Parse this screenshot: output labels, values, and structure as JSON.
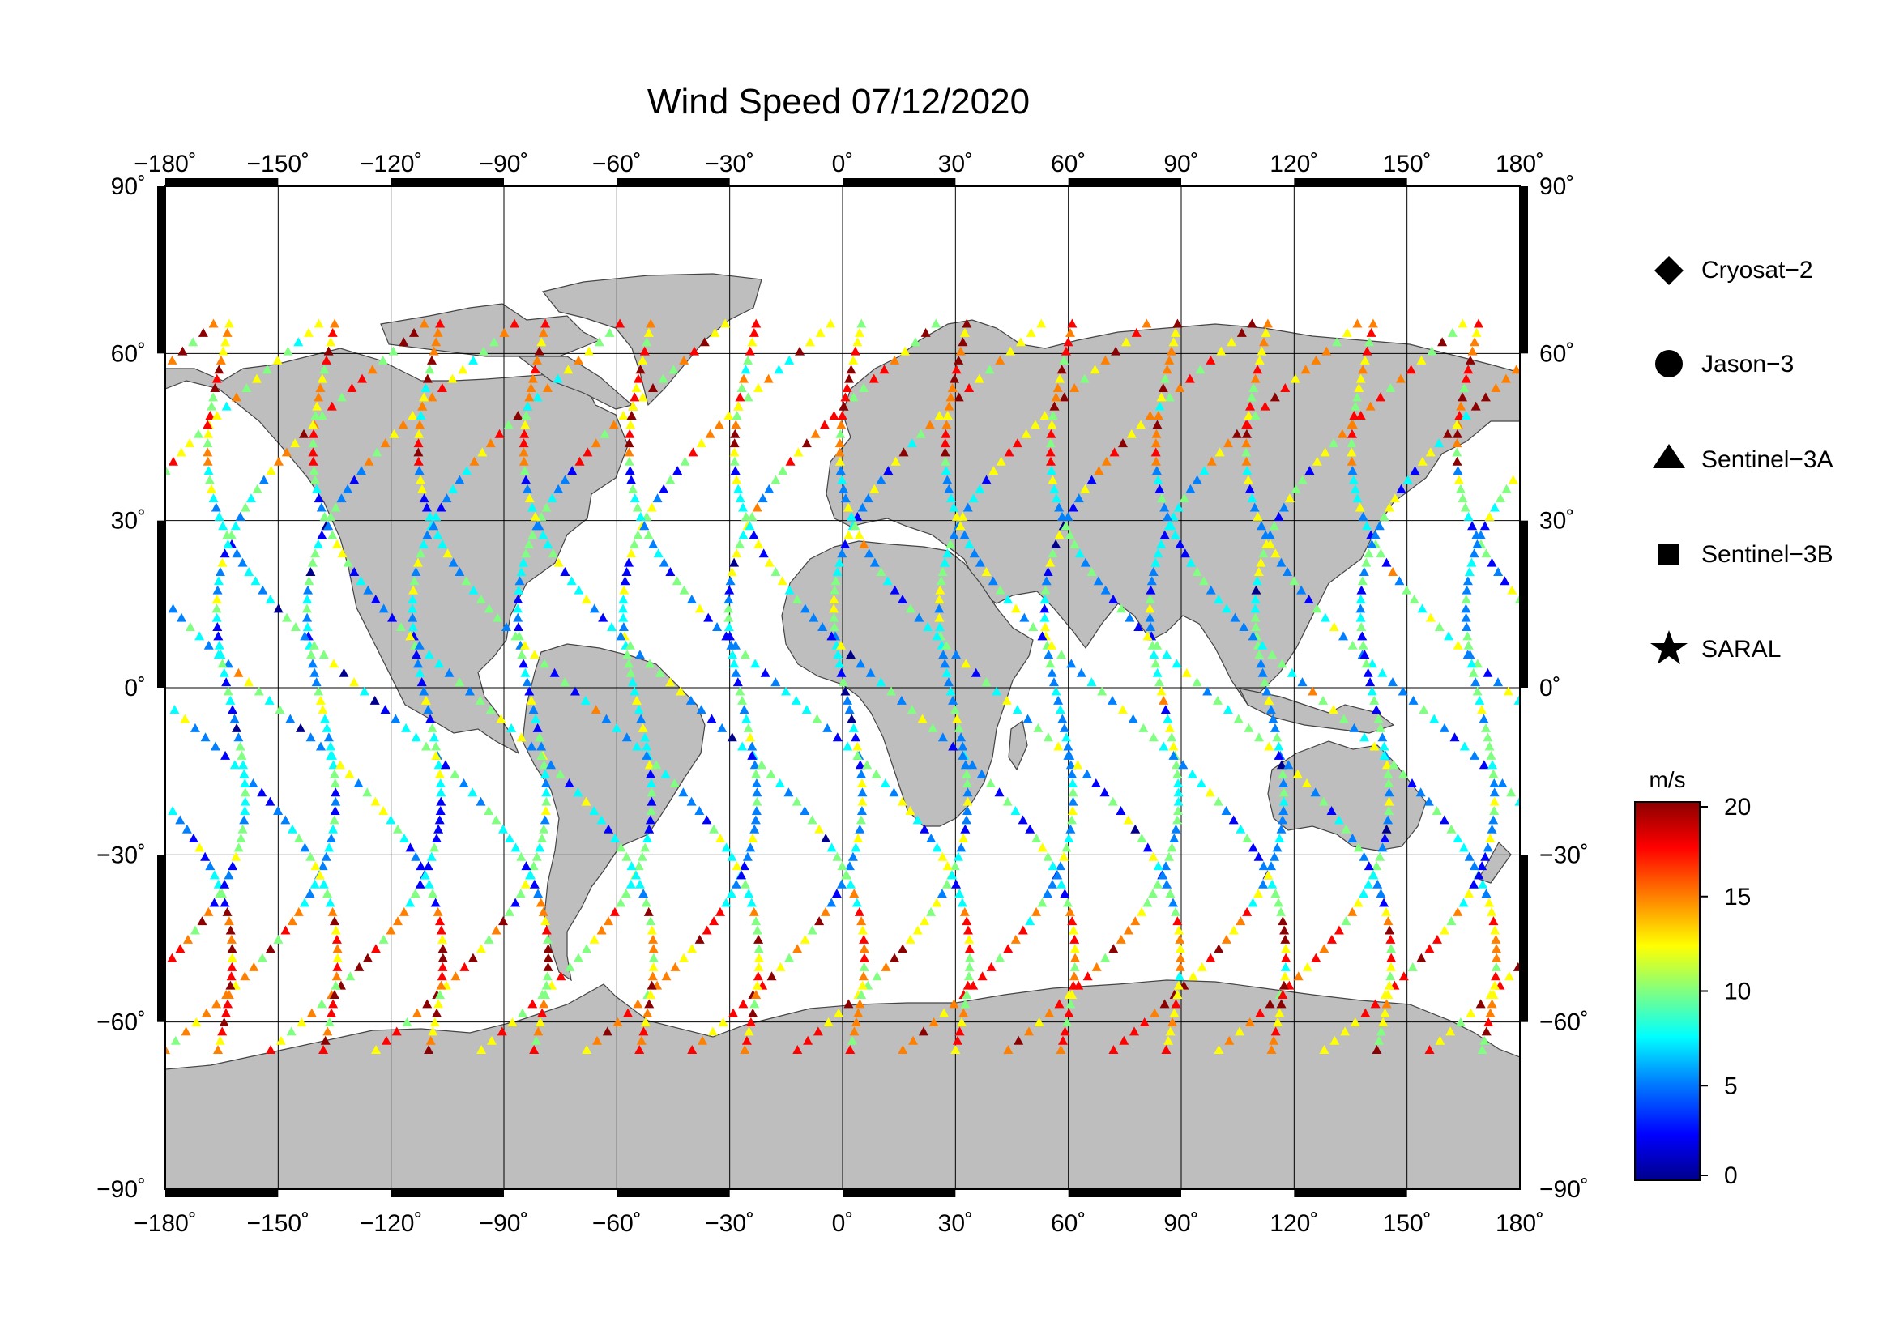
{
  "title": "Wind Speed 07/12/2020",
  "map": {
    "land_color": "#bebebe",
    "ocean_color": "#ffffff",
    "graticule": true,
    "lon_ticks": [
      -180,
      -150,
      -120,
      -90,
      -60,
      -30,
      0,
      30,
      60,
      90,
      120,
      150,
      180
    ],
    "lat_ticks": [
      90,
      60,
      30,
      0,
      -30,
      -60,
      -90
    ],
    "lon_labels": [
      "−180˚",
      "−150˚",
      "−120˚",
      "−90˚",
      "−60˚",
      "−30˚",
      "0˚",
      "30˚",
      "60˚",
      "90˚",
      "120˚",
      "150˚",
      "180˚"
    ],
    "lat_labels": [
      "90˚",
      "60˚",
      "30˚",
      "0˚",
      "−30˚",
      "−60˚",
      "−90˚"
    ]
  },
  "legend": {
    "items": [
      {
        "label": "Cryosat−2",
        "symbol": "diamond-icon"
      },
      {
        "label": "Jason−3",
        "symbol": "circle-icon"
      },
      {
        "label": "Sentinel−3A",
        "symbol": "triangle-icon"
      },
      {
        "label": "Sentinel−3B",
        "symbol": "square-icon"
      },
      {
        "label": "SARAL",
        "symbol": "star-icon"
      }
    ]
  },
  "colorbar": {
    "unit": "m/s",
    "min": 0,
    "max": 20,
    "ticks": [
      0,
      5,
      10,
      15,
      20
    ],
    "tick_labels": [
      "0",
      "5",
      "10",
      "15",
      "20"
    ],
    "colors": [
      "#00008b",
      "#0000ff",
      "#0080ff",
      "#00ffff",
      "#80ff80",
      "#ffff00",
      "#ff8000",
      "#ff0000",
      "#8b0000"
    ]
  }
}
